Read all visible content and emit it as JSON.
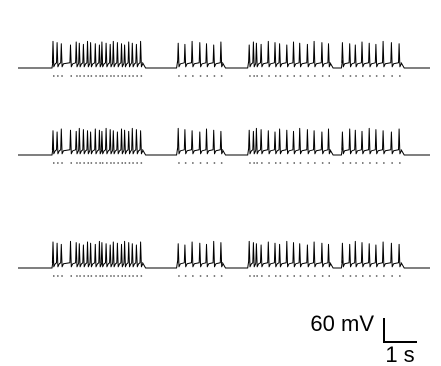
{
  "chart_data": {
    "type": "line",
    "description_kind": "membrane potential traces with spike rasters",
    "num_traces": 3,
    "scale_bar": {
      "voltage": 60,
      "voltage_unit": "mV",
      "voltage_label": "60 mV",
      "time": 1,
      "time_unit": "s",
      "time_label": "1 s"
    },
    "trace_color": "#000000",
    "spike_times_s": [
      0.68,
      0.76,
      0.84,
      1.02,
      1.13,
      1.19,
      1.27,
      1.35,
      1.41,
      1.5,
      1.58,
      1.63,
      1.71,
      1.79,
      1.85,
      1.93,
      2.01,
      2.07,
      2.15,
      2.22,
      2.3,
      2.38,
      3.11,
      3.24,
      3.38,
      3.53,
      3.66,
      3.8,
      3.94,
      4.49,
      4.57,
      4.63,
      4.72,
      4.86,
      4.99,
      5.08,
      5.22,
      5.35,
      5.47,
      5.62,
      5.75,
      5.9,
      6.03,
      6.3,
      6.44,
      6.55,
      6.68,
      6.82,
      6.95,
      7.09,
      7.25,
      7.4
    ],
    "bursts": [
      {
        "start_s": 0.66,
        "end_s": 2.42
      },
      {
        "start_s": 3.08,
        "end_s": 3.97
      },
      {
        "start_s": 4.46,
        "end_s": 6.06
      },
      {
        "start_s": 6.28,
        "end_s": 7.44
      }
    ],
    "resting_potential_rel_mV": 0,
    "spike_peak_rel_mV": 62,
    "plateau_rel_mV": 18,
    "time_range_s": [
      0,
      8.0
    ]
  }
}
